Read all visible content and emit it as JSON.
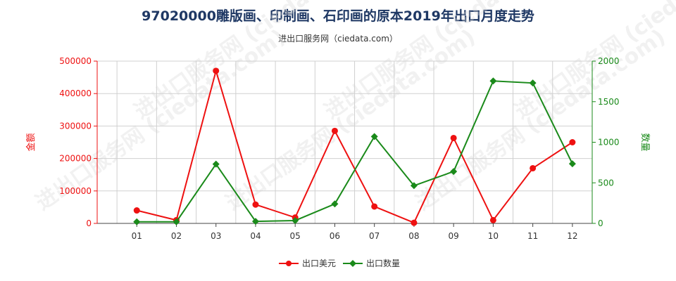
{
  "title": "97020000雕版画、印制画、石印画的原本2019年出口月度走势",
  "subtitle": "进出口服务网（ciedata.com）",
  "watermark": "进出口服务网 (ciedata.com)",
  "colors": {
    "amount": "#ee1111",
    "quantity": "#1a8a1a",
    "title": "#1f3864",
    "grid": "#d0d0d0"
  },
  "chart_data": {
    "type": "line",
    "categories": [
      "01",
      "02",
      "03",
      "04",
      "05",
      "06",
      "07",
      "08",
      "09",
      "10",
      "11",
      "12"
    ],
    "series": [
      {
        "name": "出口美元",
        "axis": "left",
        "values": [
          40000,
          10000,
          470000,
          58000,
          18000,
          285000,
          52000,
          2000,
          263000,
          10000,
          170000,
          250000
        ]
      },
      {
        "name": "出口数量",
        "axis": "right",
        "values": [
          20,
          20,
          730,
          25,
          35,
          240,
          1070,
          465,
          640,
          1755,
          1730,
          735
        ]
      }
    ],
    "ylabel_left": "金额",
    "ylabel_right": "数量",
    "ylim_left": [
      0,
      500000
    ],
    "ylim_right": [
      0,
      2000
    ],
    "yticks_left": [
      "0",
      "100000",
      "200000",
      "300000",
      "400000",
      "500000"
    ],
    "yticks_right": [
      "0",
      "500",
      "1000",
      "1500",
      "2000"
    ],
    "grid": true,
    "legend_position": "bottom-center"
  }
}
